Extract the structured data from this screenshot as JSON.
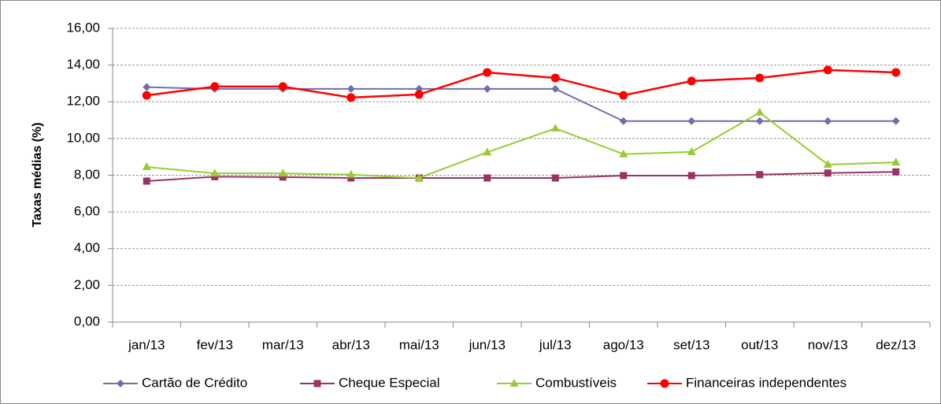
{
  "chart_data": {
    "type": "line",
    "y_label": "Taxas médias (%)",
    "categories": [
      "jan/13",
      "fev/13",
      "mar/13",
      "abr/13",
      "mai/13",
      "jun/13",
      "jul/13",
      "ago/13",
      "set/13",
      "out/13",
      "nov/13",
      "dez/13"
    ],
    "series": [
      {
        "name": "Cartão de Crédito",
        "color": "#6f6fad",
        "marker": "diamond",
        "values": [
          12.8,
          12.7,
          12.7,
          12.7,
          12.7,
          12.7,
          12.7,
          10.95,
          10.95,
          10.95,
          10.95,
          10.95
        ]
      },
      {
        "name": "Cheque Especial",
        "color": "#993366",
        "marker": "square",
        "values": [
          7.68,
          7.92,
          7.9,
          7.85,
          7.85,
          7.85,
          7.85,
          7.98,
          7.98,
          8.03,
          8.12,
          8.18
        ]
      },
      {
        "name": "Combustíveis",
        "color": "#99cc33",
        "marker": "triangle",
        "values": [
          8.45,
          8.1,
          8.1,
          8.03,
          7.85,
          9.25,
          10.55,
          9.15,
          9.27,
          11.42,
          8.58,
          8.7
        ]
      },
      {
        "name": "Financeiras independentes",
        "color": "#ff0000",
        "marker": "circle",
        "values": [
          12.35,
          12.83,
          12.83,
          12.23,
          12.4,
          13.6,
          13.3,
          12.35,
          13.13,
          13.3,
          13.73,
          13.6
        ]
      }
    ],
    "ylim": [
      0,
      16
    ],
    "yticks": [
      {
        "value": 0,
        "label": "0,00"
      },
      {
        "value": 2,
        "label": "2,00"
      },
      {
        "value": 4,
        "label": "4,00"
      },
      {
        "value": 6,
        "label": "6,00"
      },
      {
        "value": 8,
        "label": "8,00"
      },
      {
        "value": 10,
        "label": "10,00"
      },
      {
        "value": 12,
        "label": "12,00"
      },
      {
        "value": 14,
        "label": "14,00"
      },
      {
        "value": 16,
        "label": "16,00"
      }
    ],
    "grid": true,
    "legend": "bottom"
  }
}
